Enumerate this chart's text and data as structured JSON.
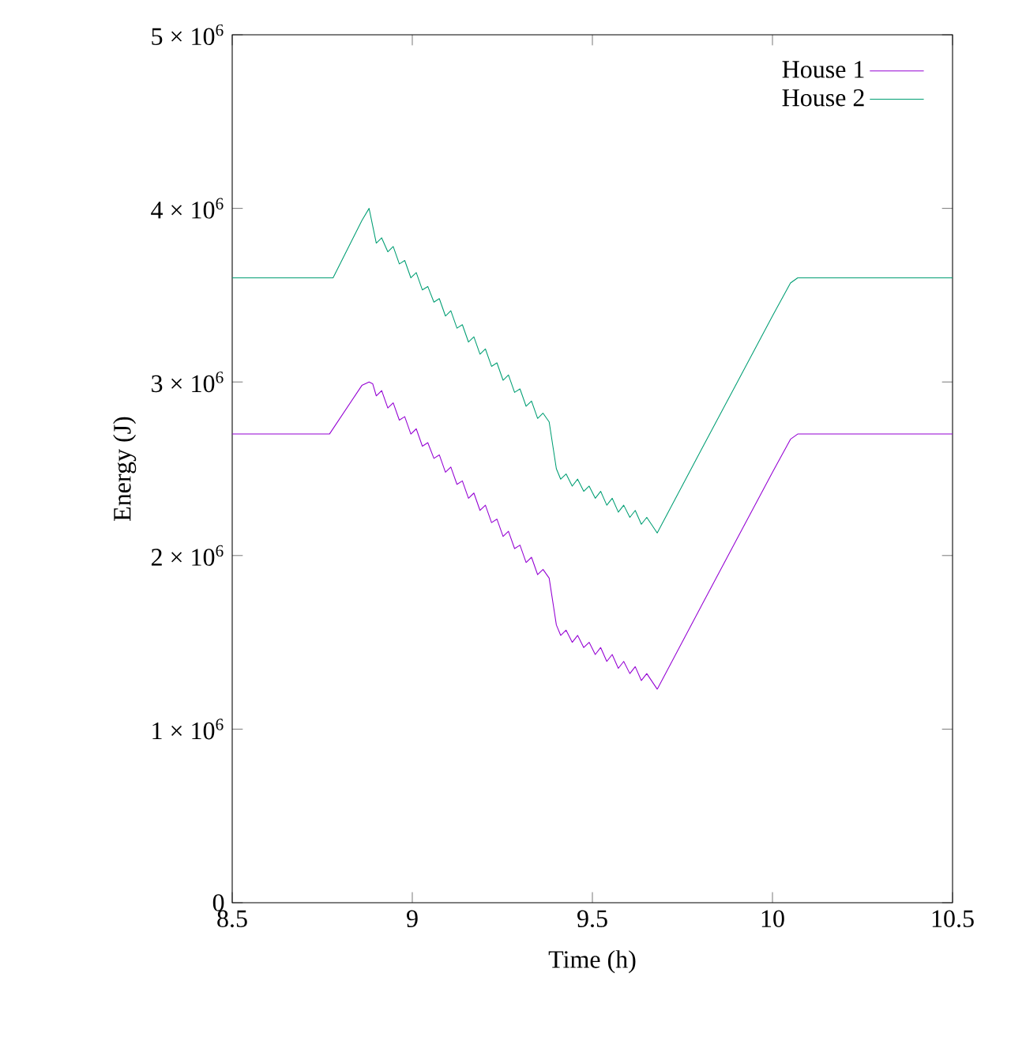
{
  "chart_data": {
    "type": "line",
    "xlabel": "Time (h)",
    "ylabel": "Energy (J)",
    "xlim": [
      8.5,
      10.5
    ],
    "xticks": [
      8.5,
      9,
      9.5,
      10,
      10.5
    ],
    "ylim": [
      0,
      5000000
    ],
    "yticks": [
      0,
      {
        "value": 1000000,
        "label": "1 × 10$^{6}$"
      },
      {
        "value": 2000000,
        "label": "2 × 10$^{6}$"
      },
      {
        "value": 3000000,
        "label": "3 × 10$^{6}$"
      },
      {
        "value": 4000000,
        "label": "4 × 10$^{6}$"
      },
      {
        "value": 5000000,
        "label": "5 × 10$^{6}$"
      }
    ],
    "legend": "top right",
    "grid": false,
    "marker": "none",
    "line_style": "solid",
    "series": [
      {
        "name": "House 1",
        "color": "#9400d3",
        "x": [
          8.5,
          8.77,
          8.86,
          8.88,
          8.89,
          8.9,
          8.915,
          8.932,
          8.947,
          8.964,
          8.979,
          8.996,
          9.011,
          9.028,
          9.043,
          9.06,
          9.075,
          9.092,
          9.107,
          9.124,
          9.139,
          9.156,
          9.171,
          9.188,
          9.203,
          9.22,
          9.235,
          9.252,
          9.267,
          9.284,
          9.299,
          9.316,
          9.331,
          9.348,
          9.363,
          9.38,
          9.4,
          9.412,
          9.427,
          9.444,
          9.459,
          9.476,
          9.491,
          9.508,
          9.523,
          9.54,
          9.555,
          9.572,
          9.587,
          9.604,
          9.619,
          9.636,
          9.651,
          9.68,
          9.8,
          9.9,
          10.0,
          10.05,
          10.07,
          10.5
        ],
        "values": [
          2700000,
          2700000,
          2980000,
          3000000,
          2990000,
          2920000,
          2950000,
          2850000,
          2880000,
          2780000,
          2800000,
          2700000,
          2730000,
          2630000,
          2650000,
          2560000,
          2580000,
          2480000,
          2510000,
          2410000,
          2430000,
          2330000,
          2360000,
          2260000,
          2290000,
          2190000,
          2210000,
          2110000,
          2140000,
          2040000,
          2060000,
          1960000,
          1990000,
          1890000,
          1920000,
          1870000,
          1600000,
          1540000,
          1570000,
          1500000,
          1540000,
          1470000,
          1500000,
          1430000,
          1470000,
          1390000,
          1430000,
          1350000,
          1390000,
          1320000,
          1360000,
          1280000,
          1320000,
          1230000,
          1700000,
          2090000,
          2480000,
          2670000,
          2700000,
          2700000
        ]
      },
      {
        "name": "House 2",
        "color": "#009e73",
        "x": [
          8.5,
          8.78,
          8.86,
          8.88,
          8.89,
          8.9,
          8.915,
          8.932,
          8.947,
          8.964,
          8.979,
          8.996,
          9.011,
          9.028,
          9.043,
          9.06,
          9.075,
          9.092,
          9.107,
          9.124,
          9.139,
          9.156,
          9.171,
          9.188,
          9.203,
          9.22,
          9.235,
          9.252,
          9.267,
          9.284,
          9.299,
          9.316,
          9.331,
          9.348,
          9.363,
          9.38,
          9.4,
          9.412,
          9.427,
          9.444,
          9.459,
          9.476,
          9.491,
          9.508,
          9.523,
          9.54,
          9.555,
          9.572,
          9.587,
          9.604,
          9.619,
          9.636,
          9.651,
          9.68,
          9.8,
          9.9,
          10.0,
          10.05,
          10.07,
          10.5
        ],
        "values": [
          3600000,
          3600000,
          3930000,
          4000000,
          3900000,
          3800000,
          3830000,
          3750000,
          3780000,
          3680000,
          3700000,
          3600000,
          3630000,
          3530000,
          3550000,
          3460000,
          3480000,
          3380000,
          3410000,
          3310000,
          3330000,
          3230000,
          3260000,
          3160000,
          3190000,
          3090000,
          3110000,
          3010000,
          3040000,
          2940000,
          2960000,
          2860000,
          2890000,
          2790000,
          2820000,
          2770000,
          2500000,
          2440000,
          2470000,
          2400000,
          2440000,
          2370000,
          2400000,
          2330000,
          2370000,
          2290000,
          2330000,
          2250000,
          2290000,
          2220000,
          2260000,
          2180000,
          2220000,
          2130000,
          2600000,
          2990000,
          3380000,
          3570000,
          3600000,
          3600000
        ]
      }
    ]
  }
}
